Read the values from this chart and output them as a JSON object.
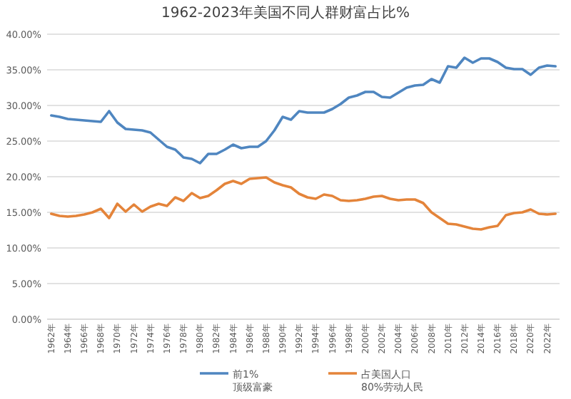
{
  "chart_data": {
    "type": "line",
    "title": "1962-2023年美国不同人群财富占比%",
    "categories": [
      "1962年",
      null,
      "1964年",
      null,
      "1966年",
      null,
      "1968年",
      null,
      "1970年",
      null,
      "1972年",
      null,
      "1974年",
      null,
      "1976年",
      null,
      "1978年",
      null,
      "1980年",
      null,
      "1982年",
      null,
      "1984年",
      null,
      "1986年",
      null,
      "1988年",
      null,
      "1990年",
      null,
      "1992年",
      null,
      "1994年",
      null,
      "1996年",
      null,
      "1998年",
      null,
      "2000年",
      null,
      "2002年",
      null,
      "2004年",
      null,
      "2006年",
      null,
      "2008年",
      null,
      "2010年",
      null,
      "2012年",
      null,
      "2014年",
      null,
      "2016年",
      null,
      "2018年",
      null,
      "2020年",
      null,
      "2022年",
      null
    ],
    "series": [
      {
        "name": "前1%\n顶级富豪",
        "color": "#4f86c0",
        "values": [
          28.6,
          28.4,
          28.1,
          28.0,
          27.9,
          27.8,
          27.7,
          29.2,
          27.6,
          26.7,
          26.6,
          26.5,
          26.2,
          25.2,
          24.2,
          23.8,
          22.7,
          22.5,
          21.9,
          23.2,
          23.2,
          23.8,
          24.5,
          24.0,
          24.2,
          24.2,
          25.0,
          26.5,
          28.4,
          28.0,
          29.2,
          29.0,
          29.0,
          29.0,
          29.5,
          30.2,
          31.1,
          31.4,
          31.9,
          31.9,
          31.2,
          31.1,
          31.8,
          32.5,
          32.8,
          32.9,
          33.7,
          33.2,
          35.5,
          35.3,
          36.7,
          36.0,
          36.6,
          36.6,
          36.1,
          35.3,
          35.1,
          35.1,
          34.3,
          35.3,
          35.6,
          35.5
        ]
      },
      {
        "name": "占美国人口\n80%劳动人民",
        "color": "#e4843a",
        "values": [
          14.8,
          14.5,
          14.4,
          14.5,
          14.7,
          15.0,
          15.5,
          14.2,
          16.2,
          15.1,
          16.1,
          15.1,
          15.8,
          16.2,
          15.9,
          17.1,
          16.6,
          17.7,
          17.0,
          17.3,
          18.1,
          19.0,
          19.4,
          19.0,
          19.7,
          19.8,
          19.9,
          19.2,
          18.8,
          18.5,
          17.6,
          17.1,
          16.9,
          17.5,
          17.3,
          16.7,
          16.6,
          16.7,
          16.9,
          17.2,
          17.3,
          16.9,
          16.7,
          16.8,
          16.8,
          16.3,
          15.0,
          14.2,
          13.4,
          13.3,
          13.0,
          12.7,
          12.6,
          12.9,
          13.1,
          14.6,
          14.9,
          15.0,
          15.4,
          14.8,
          14.7,
          14.8
        ]
      }
    ],
    "ylim": [
      0,
      40
    ],
    "yticks": [
      {
        "value": 0,
        "label": "0.00%"
      },
      {
        "value": 5,
        "label": "5.00%"
      },
      {
        "value": 10,
        "label": "10.00%"
      },
      {
        "value": 15,
        "label": "15.00%"
      },
      {
        "value": 20,
        "label": "20.00%"
      },
      {
        "value": 25,
        "label": "25.00%"
      },
      {
        "value": 30,
        "label": "30.00%"
      },
      {
        "value": 35,
        "label": "35.00%"
      },
      {
        "value": 40,
        "label": "40.00%"
      }
    ],
    "grid": "y",
    "legend": "bottom",
    "marker": "none",
    "line_style": "solid"
  }
}
